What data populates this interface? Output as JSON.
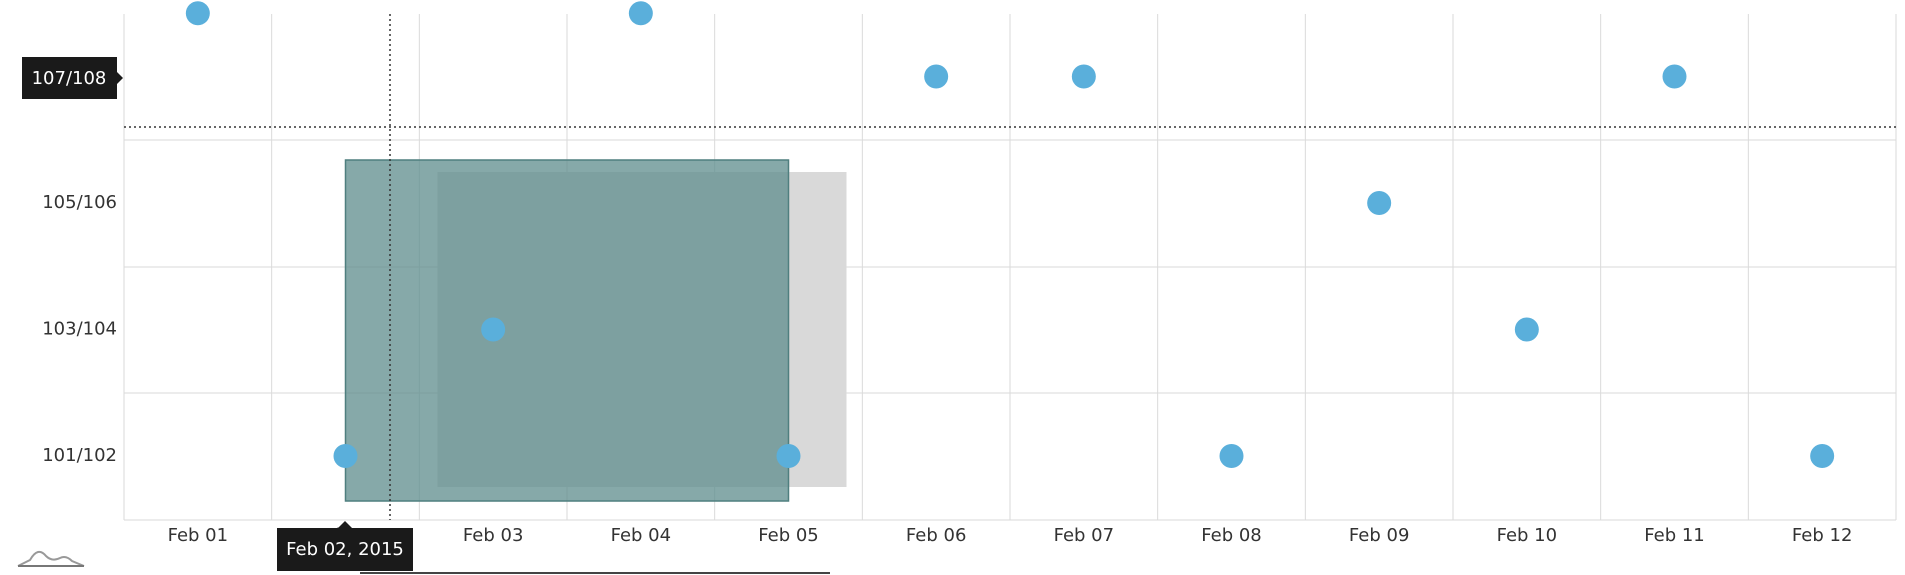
{
  "chart_data": {
    "type": "scatter",
    "title": "",
    "xlabel": "",
    "ylabel": "",
    "grid": true,
    "x_categories": [
      "Feb 01",
      "Feb 02",
      "Feb 03",
      "Feb 04",
      "Feb 05",
      "Feb 06",
      "Feb 07",
      "Feb 08",
      "Feb 09",
      "Feb 10",
      "Feb 11",
      "Feb 12"
    ],
    "y_categories": [
      "101/102",
      "103/104",
      "105/106",
      "107/108"
    ],
    "series": [
      {
        "color": "#5aafdb",
        "points": [
          {
            "x": "Feb 01",
            "y": "107/108+"
          },
          {
            "x": "Feb 02",
            "y": "101/102"
          },
          {
            "x": "Feb 03",
            "y": "103/104"
          },
          {
            "x": "Feb 04",
            "y": "107/108+"
          },
          {
            "x": "Feb 05",
            "y": "101/102"
          },
          {
            "x": "Feb 06",
            "y": "107/108"
          },
          {
            "x": "Feb 07",
            "y": "107/108"
          },
          {
            "x": "Feb 08",
            "y": "101/102"
          },
          {
            "x": "Feb 09",
            "y": "105/106"
          },
          {
            "x": "Feb 10",
            "y": "103/104"
          },
          {
            "x": "Feb 11",
            "y": "107/108"
          },
          {
            "x": "Feb 12",
            "y": "101/102"
          }
        ]
      }
    ],
    "cursor": {
      "x_label": "Feb 02, 2015",
      "y_label": "107/108"
    },
    "selection": {
      "from": "Feb 02",
      "to": "Feb 05"
    }
  },
  "colors": {
    "bullet": "#5aafdb",
    "selection": "#5e8c8c",
    "selection_shadow": "#d9d9d9",
    "grid": "#dadada",
    "tooltip_bg": "#1a1a1a"
  },
  "icons": {
    "scrollbar_grip": "mountain-chart-icon"
  }
}
